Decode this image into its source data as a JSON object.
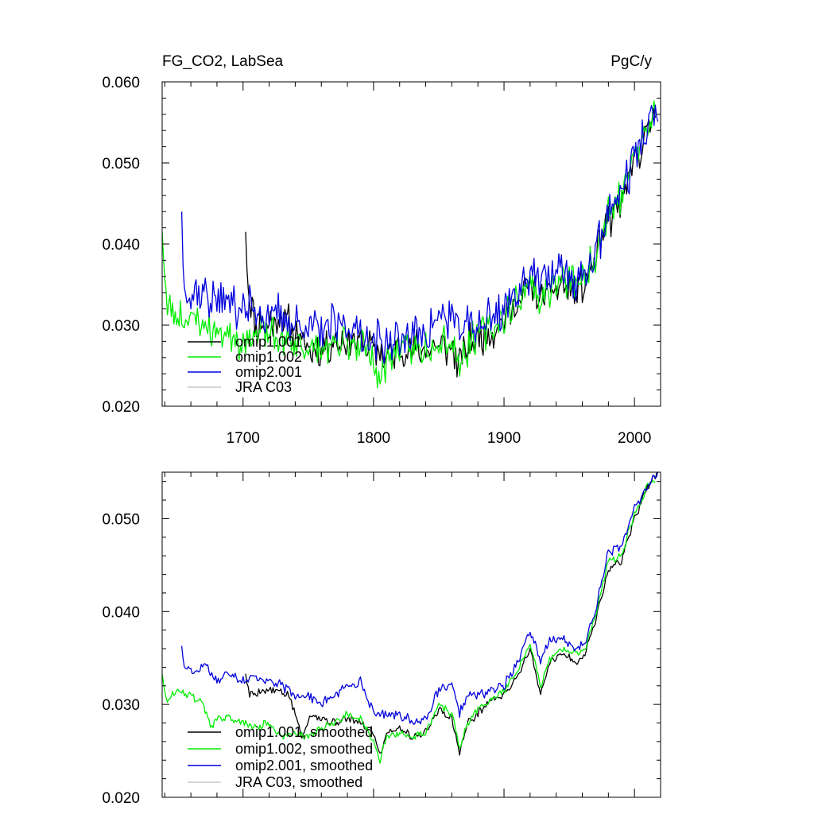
{
  "chart_data": [
    {
      "type": "line",
      "title": "FG_CO2, LabSea",
      "title_right": "PgC/y",
      "xlim": [
        1638,
        2020
      ],
      "ylim": [
        0.02,
        0.06
      ],
      "xticks": [
        1700,
        1800,
        1900,
        2000
      ],
      "xtick_labels": [
        "1700",
        "1800",
        "1900",
        "2000"
      ],
      "yticks": [
        0.02,
        0.03,
        0.04,
        0.05,
        0.06
      ],
      "ytick_labels": [
        "0.020",
        "0.030",
        "0.040",
        "0.050",
        "0.060"
      ],
      "legend_position": "bottom-left",
      "series": [
        {
          "name": "omip1.001",
          "color": "#000000",
          "noise": 0.0022,
          "seed": 11,
          "points": [
            [
              1702,
              0.0415
            ],
            [
              1705,
              0.033
            ],
            [
              1710,
              0.03
            ],
            [
              1720,
              0.03
            ],
            [
              1730,
              0.031
            ],
            [
              1740,
              0.029
            ],
            [
              1750,
              0.027
            ],
            [
              1760,
              0.027
            ],
            [
              1770,
              0.028
            ],
            [
              1780,
              0.028
            ],
            [
              1790,
              0.028
            ],
            [
              1800,
              0.027
            ],
            [
              1810,
              0.026
            ],
            [
              1820,
              0.027
            ],
            [
              1830,
              0.027
            ],
            [
              1840,
              0.027
            ],
            [
              1850,
              0.0275
            ],
            [
              1860,
              0.027
            ],
            [
              1866,
              0.025
            ],
            [
              1870,
              0.027
            ],
            [
              1880,
              0.0285
            ],
            [
              1890,
              0.029
            ],
            [
              1900,
              0.031
            ],
            [
              1910,
              0.0325
            ],
            [
              1920,
              0.035
            ],
            [
              1928,
              0.033
            ],
            [
              1935,
              0.034
            ],
            [
              1945,
              0.035
            ],
            [
              1955,
              0.034
            ],
            [
              1962,
              0.035
            ],
            [
              1970,
              0.038
            ],
            [
              1980,
              0.043
            ],
            [
              1990,
              0.045
            ],
            [
              2000,
              0.05
            ],
            [
              2010,
              0.054
            ],
            [
              2016,
              0.056
            ]
          ]
        },
        {
          "name": "omip1.002",
          "color": "#00ee00",
          "noise": 0.0022,
          "seed": 23,
          "points": [
            [
              1638,
              0.0415
            ],
            [
              1642,
              0.032
            ],
            [
              1650,
              0.031
            ],
            [
              1660,
              0.031
            ],
            [
              1670,
              0.03
            ],
            [
              1680,
              0.029
            ],
            [
              1690,
              0.029
            ],
            [
              1700,
              0.028
            ],
            [
              1710,
              0.029
            ],
            [
              1720,
              0.029
            ],
            [
              1730,
              0.028
            ],
            [
              1740,
              0.028
            ],
            [
              1750,
              0.027
            ],
            [
              1760,
              0.027
            ],
            [
              1770,
              0.027
            ],
            [
              1780,
              0.028
            ],
            [
              1790,
              0.028
            ],
            [
              1800,
              0.026
            ],
            [
              1804,
              0.0225
            ],
            [
              1810,
              0.026
            ],
            [
              1820,
              0.027
            ],
            [
              1830,
              0.027
            ],
            [
              1840,
              0.027
            ],
            [
              1850,
              0.0285
            ],
            [
              1860,
              0.028
            ],
            [
              1866,
              0.025
            ],
            [
              1870,
              0.027
            ],
            [
              1880,
              0.029
            ],
            [
              1890,
              0.0295
            ],
            [
              1900,
              0.031
            ],
            [
              1910,
              0.033
            ],
            [
              1920,
              0.0355
            ],
            [
              1928,
              0.033
            ],
            [
              1935,
              0.0345
            ],
            [
              1945,
              0.0355
            ],
            [
              1955,
              0.0355
            ],
            [
              1962,
              0.0355
            ],
            [
              1970,
              0.039
            ],
            [
              1980,
              0.044
            ],
            [
              1990,
              0.046
            ],
            [
              2000,
              0.051
            ],
            [
              2010,
              0.054
            ],
            [
              2016,
              0.056
            ]
          ]
        },
        {
          "name": "omip2.001",
          "color": "#0000dd",
          "noise": 0.0026,
          "seed": 37,
          "points": [
            [
              1653,
              0.044
            ],
            [
              1655,
              0.0345
            ],
            [
              1660,
              0.034
            ],
            [
              1670,
              0.034
            ],
            [
              1680,
              0.033
            ],
            [
              1690,
              0.033
            ],
            [
              1700,
              0.032
            ],
            [
              1710,
              0.032
            ],
            [
              1720,
              0.031
            ],
            [
              1730,
              0.031
            ],
            [
              1740,
              0.03
            ],
            [
              1750,
              0.03
            ],
            [
              1760,
              0.029
            ],
            [
              1770,
              0.03
            ],
            [
              1780,
              0.03
            ],
            [
              1790,
              0.029
            ],
            [
              1800,
              0.028
            ],
            [
              1810,
              0.028
            ],
            [
              1820,
              0.028
            ],
            [
              1830,
              0.029
            ],
            [
              1840,
              0.029
            ],
            [
              1850,
              0.031
            ],
            [
              1860,
              0.031
            ],
            [
              1866,
              0.029
            ],
            [
              1870,
              0.03
            ],
            [
              1880,
              0.03
            ],
            [
              1890,
              0.031
            ],
            [
              1900,
              0.032
            ],
            [
              1910,
              0.034
            ],
            [
              1920,
              0.037
            ],
            [
              1928,
              0.035
            ],
            [
              1935,
              0.036
            ],
            [
              1945,
              0.037
            ],
            [
              1955,
              0.035
            ],
            [
              1962,
              0.036
            ],
            [
              1970,
              0.039
            ],
            [
              1980,
              0.044
            ],
            [
              1990,
              0.0465
            ],
            [
              2000,
              0.051
            ],
            [
              2010,
              0.054
            ],
            [
              2018,
              0.057
            ]
          ]
        },
        {
          "name": "JRA C03",
          "color": "#c8c8c8",
          "noise": 0,
          "seed": 0,
          "points": []
        }
      ]
    },
    {
      "type": "line",
      "xlim": [
        1638,
        2020
      ],
      "ylim": [
        0.02,
        0.055
      ],
      "xticks": [
        1700,
        1800,
        1900,
        2000
      ],
      "yticks": [
        0.02,
        0.03,
        0.04,
        0.05
      ],
      "ytick_labels": [
        "0.020",
        "0.030",
        "0.040",
        "0.050"
      ],
      "legend_position": "bottom-left",
      "series": [
        {
          "name": "omip1.001, smoothed",
          "color": "#000000",
          "noise": 0.0004,
          "seed": 5,
          "points": [
            [
              1702,
              0.0333
            ],
            [
              1705,
              0.031
            ],
            [
              1715,
              0.0315
            ],
            [
              1725,
              0.0315
            ],
            [
              1735,
              0.031
            ],
            [
              1740,
              0.029
            ],
            [
              1745,
              0.0265
            ],
            [
              1752,
              0.029
            ],
            [
              1760,
              0.0285
            ],
            [
              1770,
              0.028
            ],
            [
              1780,
              0.0285
            ],
            [
              1790,
              0.028
            ],
            [
              1800,
              0.027
            ],
            [
              1805,
              0.0245
            ],
            [
              1810,
              0.027
            ],
            [
              1820,
              0.0275
            ],
            [
              1830,
              0.0265
            ],
            [
              1840,
              0.027
            ],
            [
              1850,
              0.0295
            ],
            [
              1860,
              0.0285
            ],
            [
              1866,
              0.0248
            ],
            [
              1872,
              0.028
            ],
            [
              1880,
              0.029
            ],
            [
              1890,
              0.0305
            ],
            [
              1900,
              0.031
            ],
            [
              1910,
              0.033
            ],
            [
              1920,
              0.036
            ],
            [
              1928,
              0.031
            ],
            [
              1935,
              0.0345
            ],
            [
              1945,
              0.0355
            ],
            [
              1955,
              0.0345
            ],
            [
              1962,
              0.0355
            ],
            [
              1970,
              0.039
            ],
            [
              1980,
              0.0445
            ],
            [
              1990,
              0.0455
            ],
            [
              2000,
              0.05
            ],
            [
              2010,
              0.0535
            ],
            [
              2018,
              0.055
            ]
          ]
        },
        {
          "name": "omip1.002, smoothed",
          "color": "#00ee00",
          "noise": 0.0004,
          "seed": 9,
          "points": [
            [
              1638,
              0.0333
            ],
            [
              1641,
              0.0305
            ],
            [
              1650,
              0.0315
            ],
            [
              1660,
              0.031
            ],
            [
              1670,
              0.03
            ],
            [
              1675,
              0.0275
            ],
            [
              1680,
              0.0285
            ],
            [
              1690,
              0.0285
            ],
            [
              1700,
              0.028
            ],
            [
              1710,
              0.0275
            ],
            [
              1720,
              0.028
            ],
            [
              1730,
              0.0265
            ],
            [
              1740,
              0.027
            ],
            [
              1750,
              0.0265
            ],
            [
              1760,
              0.0275
            ],
            [
              1770,
              0.028
            ],
            [
              1780,
              0.029
            ],
            [
              1790,
              0.0285
            ],
            [
              1800,
              0.026
            ],
            [
              1805,
              0.024
            ],
            [
              1810,
              0.0265
            ],
            [
              1820,
              0.027
            ],
            [
              1830,
              0.0265
            ],
            [
              1840,
              0.027
            ],
            [
              1850,
              0.03
            ],
            [
              1860,
              0.029
            ],
            [
              1866,
              0.0252
            ],
            [
              1872,
              0.028
            ],
            [
              1880,
              0.0295
            ],
            [
              1890,
              0.0305
            ],
            [
              1900,
              0.0315
            ],
            [
              1910,
              0.0335
            ],
            [
              1920,
              0.0365
            ],
            [
              1928,
              0.032
            ],
            [
              1935,
              0.035
            ],
            [
              1945,
              0.036
            ],
            [
              1955,
              0.0355
            ],
            [
              1962,
              0.036
            ],
            [
              1970,
              0.0395
            ],
            [
              1980,
              0.0455
            ],
            [
              1990,
              0.046
            ],
            [
              2000,
              0.0505
            ],
            [
              2010,
              0.0535
            ],
            [
              2016,
              0.054
            ]
          ]
        },
        {
          "name": "omip2.001, smoothed",
          "color": "#0000dd",
          "noise": 0.0005,
          "seed": 17,
          "points": [
            [
              1653,
              0.0363
            ],
            [
              1655,
              0.034
            ],
            [
              1665,
              0.0335
            ],
            [
              1670,
              0.0345
            ],
            [
              1680,
              0.0325
            ],
            [
              1690,
              0.0335
            ],
            [
              1700,
              0.0325
            ],
            [
              1710,
              0.033
            ],
            [
              1720,
              0.0325
            ],
            [
              1730,
              0.032
            ],
            [
              1740,
              0.031
            ],
            [
              1750,
              0.031
            ],
            [
              1760,
              0.03
            ],
            [
              1770,
              0.031
            ],
            [
              1780,
              0.032
            ],
            [
              1790,
              0.0325
            ],
            [
              1800,
              0.029
            ],
            [
              1810,
              0.029
            ],
            [
              1820,
              0.029
            ],
            [
              1830,
              0.028
            ],
            [
              1840,
              0.0285
            ],
            [
              1850,
              0.0315
            ],
            [
              1860,
              0.032
            ],
            [
              1866,
              0.029
            ],
            [
              1872,
              0.031
            ],
            [
              1880,
              0.031
            ],
            [
              1890,
              0.0315
            ],
            [
              1900,
              0.032
            ],
            [
              1910,
              0.0345
            ],
            [
              1920,
              0.038
            ],
            [
              1928,
              0.0345
            ],
            [
              1935,
              0.037
            ],
            [
              1945,
              0.037
            ],
            [
              1955,
              0.036
            ],
            [
              1962,
              0.0365
            ],
            [
              1970,
              0.04
            ],
            [
              1980,
              0.0465
            ],
            [
              1990,
              0.047
            ],
            [
              2000,
              0.051
            ],
            [
              2010,
              0.0535
            ],
            [
              2018,
              0.055
            ]
          ]
        },
        {
          "name": "JRA C03, smoothed",
          "color": "#c8c8c8",
          "noise": 0,
          "seed": 0,
          "points": []
        }
      ]
    }
  ]
}
